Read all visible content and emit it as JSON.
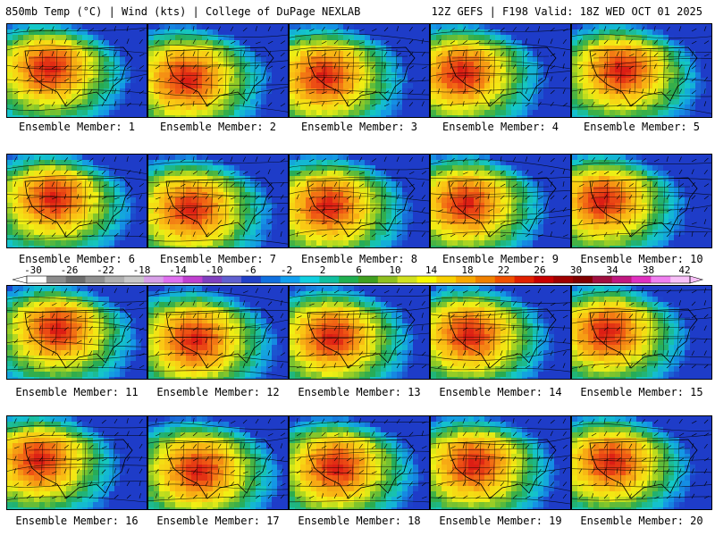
{
  "header": {
    "left": "850mb Temp (°C) | Wind (kts) | College of DuPage NEXLAB",
    "right": "12Z GEFS | F198 Valid: 18Z WED OCT 01 2025"
  },
  "members": [
    {
      "label": "Ensemble Member: 1"
    },
    {
      "label": "Ensemble Member: 2"
    },
    {
      "label": "Ensemble Member: 3"
    },
    {
      "label": "Ensemble Member: 4"
    },
    {
      "label": "Ensemble Member: 5"
    },
    {
      "label": "Ensemble Member: 6"
    },
    {
      "label": "Ensemble Member: 7"
    },
    {
      "label": "Ensemble Member: 8"
    },
    {
      "label": "Ensemble Member: 9"
    },
    {
      "label": "Ensemble Member: 10"
    },
    {
      "label": "Ensemble Member: 11"
    },
    {
      "label": "Ensemble Member: 12"
    },
    {
      "label": "Ensemble Member: 13"
    },
    {
      "label": "Ensemble Member: 14"
    },
    {
      "label": "Ensemble Member: 15"
    },
    {
      "label": "Ensemble Member: 16"
    },
    {
      "label": "Ensemble Member: 17"
    },
    {
      "label": "Ensemble Member: 18"
    },
    {
      "label": "Ensemble Member: 19"
    },
    {
      "label": "Ensemble Member: 20"
    }
  ],
  "colorbar": {
    "ticks": [
      "-30",
      "-26",
      "-22",
      "-18",
      "-14",
      "-10",
      "-6",
      "-2",
      "2",
      "6",
      "10",
      "14",
      "18",
      "22",
      "26",
      "30",
      "34",
      "38",
      "42"
    ],
    "colors": [
      "#ffffff",
      "#8c8c8c",
      "#6e6e6e",
      "#909090",
      "#b0b0b0",
      "#c8c8c8",
      "#d8a0e8",
      "#e070f0",
      "#c040d0",
      "#8040c0",
      "#6060d0",
      "#2040c8",
      "#1070e0",
      "#10a0f0",
      "#10d0e0",
      "#10c0a0",
      "#20b050",
      "#40a020",
      "#90c020",
      "#d0e020",
      "#f8f800",
      "#f8d000",
      "#f8a800",
      "#f08000",
      "#f05000",
      "#e02000",
      "#c80000",
      "#a00000",
      "#800000",
      "#a01040",
      "#c01880",
      "#e030c0",
      "#f080f0",
      "#f8c0f8"
    ]
  }
}
